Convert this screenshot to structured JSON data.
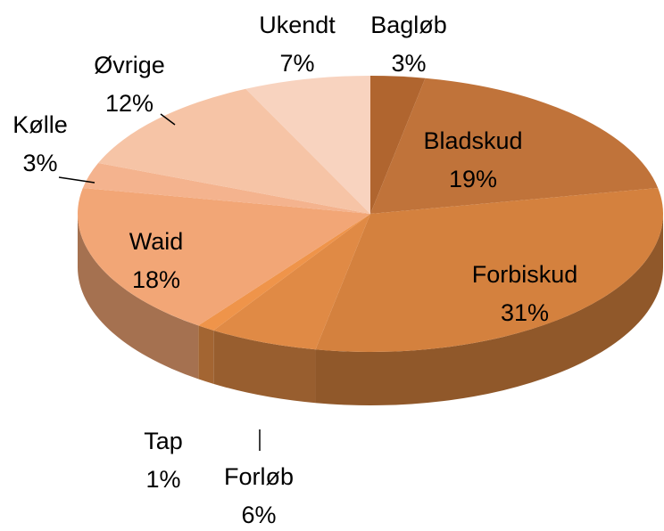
{
  "chart_data": {
    "type": "pie",
    "categories": [
      "Bagløb",
      "Bladskud",
      "Forbiskud",
      "Forløb",
      "Tap",
      "Waid",
      "Kølle",
      "Øvrige",
      "Ukendt"
    ],
    "values": [
      3,
      19,
      31,
      6,
      1,
      18,
      3,
      12,
      7
    ],
    "value_labels": [
      "3%",
      "19%",
      "31%",
      "6%",
      "1%",
      "18%",
      "3%",
      "12%",
      "7%"
    ],
    "colors": [
      "#b0652f",
      "#c0733a",
      "#d4813e",
      "#e08a45",
      "#ef944a",
      "#f2a676",
      "#f4b38e",
      "#f6c4a6",
      "#f8d3bf"
    ]
  }
}
